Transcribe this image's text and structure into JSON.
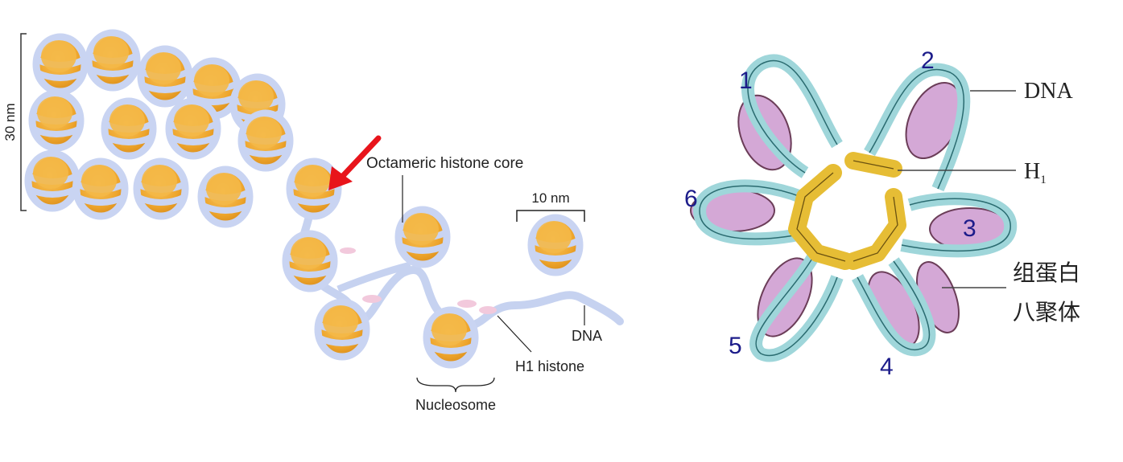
{
  "left_figure": {
    "scale_30nm": "30 nm",
    "scale_10nm": "10 nm",
    "octameric_label": "Octameric histone core",
    "dna_label": "DNA",
    "h1_label": "H1 histone",
    "nucleosome_label": "Nucleosome",
    "arrow_color": "#e8141b"
  },
  "right_figure": {
    "dna_label": "DNA",
    "h1_main": "H",
    "h1_sub": "1",
    "octamer_line1": "组蛋白",
    "octamer_line2": "八聚体",
    "numbers": [
      "1",
      "2",
      "3",
      "4",
      "5",
      "6"
    ]
  },
  "colors": {
    "histone_core": "#f2b13d",
    "dna_coil": "#c6d2f0",
    "dna_teal": "#a9dde0",
    "histone_purple": "#d4a8d6",
    "h1_yellow": "#e6bd35",
    "number_color": "#1c1c8a"
  }
}
